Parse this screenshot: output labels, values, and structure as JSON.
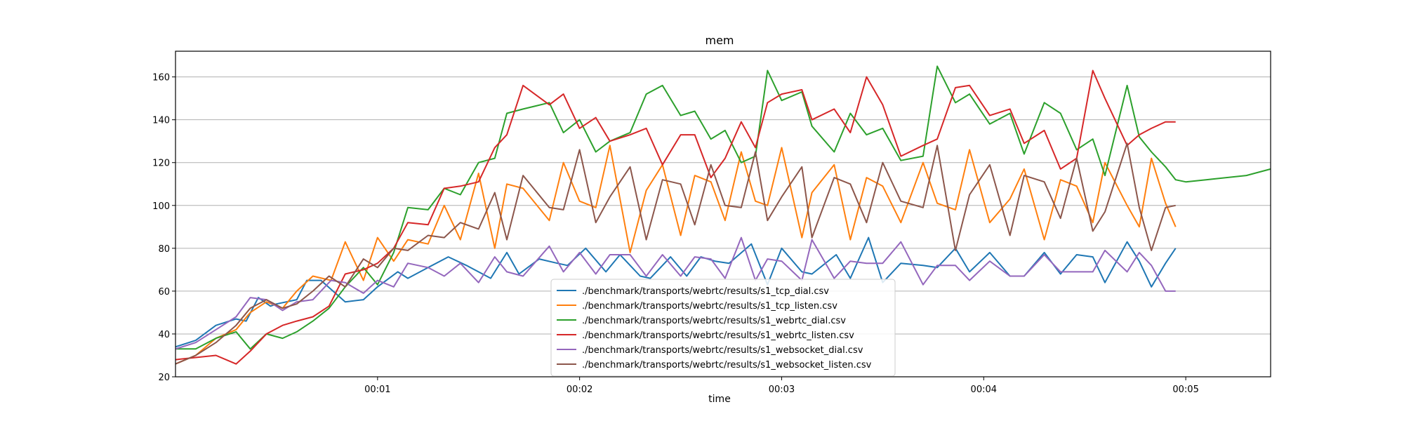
{
  "chart_data": {
    "type": "line",
    "title": "mem",
    "xlabel": "time",
    "ylabel": "",
    "x_unit": "seconds",
    "xlim": [
      0,
      5.42
    ],
    "ylim": [
      20,
      172
    ],
    "x_ticks": [
      {
        "value": 1,
        "label": "00:01"
      },
      {
        "value": 2,
        "label": "00:02"
      },
      {
        "value": 3,
        "label": "00:03"
      },
      {
        "value": 4,
        "label": "00:04"
      },
      {
        "value": 5,
        "label": "00:05"
      }
    ],
    "y_ticks": [
      20,
      40,
      60,
      80,
      100,
      120,
      140,
      160
    ],
    "grid": "y-major",
    "legend_position": "bottom-center",
    "series": [
      {
        "name": "./benchmark/transports/webrtc/results/s1_tcp_dial.csv",
        "color": "#1f77b4",
        "x": [
          0.0,
          0.1,
          0.2,
          0.3,
          0.35,
          0.41,
          0.47,
          0.5,
          0.6,
          0.65,
          0.72,
          0.84,
          0.93,
          1.0,
          1.1,
          1.15,
          1.25,
          1.35,
          1.44,
          1.56,
          1.64,
          1.7,
          1.8,
          1.89,
          1.94,
          2.03,
          2.13,
          2.2,
          2.3,
          2.35,
          2.45,
          2.53,
          2.6,
          2.67,
          2.74,
          2.85,
          2.93,
          3.0,
          3.1,
          3.15,
          3.27,
          3.34,
          3.43,
          3.5,
          3.59,
          3.7,
          3.77,
          3.86,
          3.93,
          4.03,
          4.13,
          4.2,
          4.3,
          4.38,
          4.46,
          4.54,
          4.6,
          4.71,
          4.77,
          4.83,
          4.9,
          4.95
        ],
        "y": [
          34,
          37,
          44,
          47,
          46,
          57,
          53,
          54,
          56,
          65,
          65,
          55,
          56,
          62,
          69,
          66,
          71,
          76,
          72,
          66,
          78,
          68,
          75,
          73,
          72,
          80,
          69,
          77,
          67,
          66,
          76,
          67,
          76,
          74,
          73,
          82,
          63,
          80,
          69,
          68,
          77,
          66,
          85,
          64,
          73,
          72,
          71,
          80,
          69,
          78,
          67,
          67,
          78,
          68,
          77,
          76,
          64,
          83,
          74,
          62,
          73,
          80
        ]
      },
      {
        "name": "./benchmark/transports/webrtc/results/s1_tcp_listen.csv",
        "color": "#ff7f0e",
        "x": [
          0.0,
          0.1,
          0.2,
          0.3,
          0.37,
          0.45,
          0.53,
          0.6,
          0.68,
          0.77,
          0.84,
          0.93,
          1.0,
          1.08,
          1.15,
          1.25,
          1.33,
          1.41,
          1.5,
          1.58,
          1.64,
          1.72,
          1.85,
          1.92,
          2.0,
          2.08,
          2.15,
          2.25,
          2.33,
          2.41,
          2.5,
          2.57,
          2.65,
          2.72,
          2.8,
          2.87,
          2.93,
          3.0,
          3.1,
          3.15,
          3.26,
          3.34,
          3.42,
          3.5,
          3.59,
          3.7,
          3.77,
          3.86,
          3.93,
          4.03,
          4.13,
          4.2,
          4.3,
          4.38,
          4.46,
          4.54,
          4.6,
          4.71,
          4.77,
          4.83,
          4.9,
          4.95
        ],
        "y": [
          26,
          30,
          38,
          42,
          50,
          55,
          52,
          60,
          67,
          65,
          83,
          65,
          85,
          74,
          84,
          82,
          100,
          84,
          115,
          80,
          110,
          108,
          93,
          120,
          102,
          99,
          128,
          78,
          107,
          119,
          86,
          114,
          111,
          93,
          125,
          102,
          100,
          127,
          85,
          106,
          119,
          84,
          113,
          109,
          92,
          120,
          101,
          98,
          126,
          92,
          103,
          117,
          84,
          112,
          109,
          92,
          120,
          100,
          90,
          122,
          101,
          90
        ]
      },
      {
        "name": "./benchmark/transports/webrtc/results/s1_webrtc_dial.csv",
        "color": "#2ca02c",
        "x": [
          0.0,
          0.1,
          0.2,
          0.3,
          0.37,
          0.45,
          0.53,
          0.6,
          0.68,
          0.76,
          0.84,
          0.93,
          1.0,
          1.08,
          1.15,
          1.25,
          1.33,
          1.41,
          1.5,
          1.58,
          1.64,
          1.72,
          1.85,
          1.92,
          2.0,
          2.08,
          2.15,
          2.25,
          2.33,
          2.41,
          2.5,
          2.57,
          2.65,
          2.72,
          2.8,
          2.87,
          2.93,
          3.0,
          3.1,
          3.15,
          3.26,
          3.34,
          3.42,
          3.5,
          3.59,
          3.7,
          3.77,
          3.86,
          3.93,
          4.03,
          4.13,
          4.2,
          4.3,
          4.38,
          4.46,
          4.54,
          4.6,
          4.71,
          4.77,
          4.83,
          4.9,
          4.95,
          5.0,
          5.1,
          5.3,
          5.42
        ],
        "y": [
          33,
          33,
          38,
          41,
          33,
          40,
          38,
          41,
          46,
          52,
          62,
          71,
          63,
          78,
          99,
          98,
          108,
          105,
          120,
          122,
          143,
          145,
          148,
          134,
          140,
          125,
          130,
          134,
          152,
          156,
          142,
          144,
          131,
          135,
          120,
          123,
          163,
          149,
          153,
          137,
          125,
          143,
          133,
          136,
          121,
          123,
          165,
          148,
          152,
          138,
          143,
          124,
          148,
          143,
          126,
          131,
          114,
          156,
          132,
          125,
          118,
          112,
          111,
          112,
          114,
          117
        ]
      },
      {
        "name": "./benchmark/transports/webrtc/results/s1_webrtc_listen.csv",
        "color": "#d62728",
        "x": [
          0.0,
          0.1,
          0.2,
          0.3,
          0.37,
          0.45,
          0.53,
          0.6,
          0.68,
          0.76,
          0.84,
          0.93,
          1.0,
          1.08,
          1.15,
          1.25,
          1.33,
          1.41,
          1.5,
          1.58,
          1.64,
          1.72,
          1.85,
          1.92,
          2.0,
          2.08,
          2.15,
          2.25,
          2.33,
          2.41,
          2.5,
          2.57,
          2.65,
          2.72,
          2.8,
          2.87,
          2.93,
          3.0,
          3.1,
          3.15,
          3.26,
          3.34,
          3.42,
          3.5,
          3.59,
          3.7,
          3.77,
          3.86,
          3.93,
          4.03,
          4.13,
          4.2,
          4.3,
          4.38,
          4.46,
          4.54,
          4.6,
          4.71,
          4.77,
          4.83,
          4.9,
          4.95
        ],
        "y": [
          28,
          29,
          30,
          26,
          32,
          40,
          44,
          46,
          48,
          53,
          68,
          70,
          73,
          80,
          92,
          91,
          108,
          109,
          111,
          127,
          133,
          156,
          147,
          152,
          136,
          141,
          130,
          133,
          136,
          119,
          133,
          133,
          113,
          122,
          139,
          127,
          148,
          152,
          154,
          140,
          145,
          134,
          160,
          147,
          123,
          128,
          131,
          155,
          156,
          142,
          145,
          129,
          135,
          117,
          122,
          163,
          150,
          128,
          133,
          136,
          139,
          139
        ]
      },
      {
        "name": "./benchmark/transports/webrtc/results/s1_websocket_dial.csv",
        "color": "#9467bd",
        "x": [
          0.0,
          0.1,
          0.2,
          0.3,
          0.37,
          0.45,
          0.53,
          0.6,
          0.68,
          0.77,
          0.84,
          0.93,
          1.0,
          1.08,
          1.15,
          1.25,
          1.33,
          1.41,
          1.5,
          1.58,
          1.64,
          1.72,
          1.85,
          1.92,
          2.0,
          2.08,
          2.15,
          2.25,
          2.33,
          2.41,
          2.5,
          2.57,
          2.65,
          2.72,
          2.8,
          2.87,
          2.93,
          3.0,
          3.1,
          3.15,
          3.26,
          3.34,
          3.42,
          3.5,
          3.59,
          3.7,
          3.77,
          3.86,
          3.93,
          4.03,
          4.13,
          4.2,
          4.3,
          4.38,
          4.46,
          4.54,
          4.6,
          4.71,
          4.77,
          4.83,
          4.9,
          4.95
        ],
        "y": [
          33,
          36,
          42,
          48,
          57,
          56,
          51,
          55,
          56,
          65,
          64,
          59,
          65,
          62,
          73,
          71,
          67,
          73,
          64,
          76,
          69,
          67,
          81,
          69,
          78,
          68,
          77,
          77,
          67,
          77,
          67,
          76,
          75,
          66,
          85,
          65,
          75,
          74,
          65,
          84,
          66,
          74,
          73,
          73,
          83,
          63,
          72,
          72,
          65,
          74,
          67,
          67,
          77,
          69,
          69,
          69,
          79,
          69,
          78,
          72,
          60,
          60
        ]
      },
      {
        "name": "./benchmark/transports/webrtc/results/s1_websocket_listen.csv",
        "color": "#8c564b",
        "x": [
          0.0,
          0.1,
          0.2,
          0.3,
          0.37,
          0.45,
          0.53,
          0.6,
          0.68,
          0.76,
          0.84,
          0.93,
          1.0,
          1.08,
          1.15,
          1.25,
          1.33,
          1.41,
          1.5,
          1.58,
          1.64,
          1.72,
          1.85,
          1.92,
          2.0,
          2.08,
          2.15,
          2.25,
          2.33,
          2.41,
          2.5,
          2.57,
          2.65,
          2.72,
          2.8,
          2.87,
          2.93,
          3.0,
          3.1,
          3.15,
          3.26,
          3.34,
          3.42,
          3.5,
          3.59,
          3.7,
          3.77,
          3.86,
          3.93,
          4.03,
          4.13,
          4.2,
          4.3,
          4.38,
          4.46,
          4.54,
          4.6,
          4.71,
          4.77,
          4.83,
          4.9,
          4.95
        ],
        "y": [
          26,
          30,
          36,
          44,
          52,
          56,
          52,
          54,
          60,
          67,
          62,
          75,
          71,
          80,
          79,
          86,
          85,
          92,
          89,
          106,
          84,
          114,
          99,
          98,
          126,
          92,
          104,
          118,
          84,
          112,
          110,
          91,
          119,
          100,
          99,
          125,
          93,
          104,
          118,
          85,
          113,
          110,
          92,
          120,
          102,
          99,
          128,
          79,
          105,
          119,
          86,
          114,
          111,
          94,
          122,
          88,
          97,
          129,
          99,
          79,
          99,
          100
        ]
      }
    ]
  }
}
